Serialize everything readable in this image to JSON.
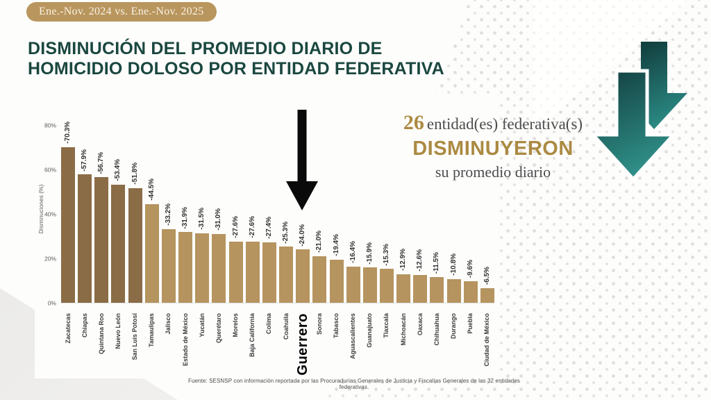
{
  "badge": {
    "label": "Ene.-Nov. 2024 vs. Ene.-Nov. 2025"
  },
  "title": {
    "line1": "DISMINUCIÓN DEL PROMEDIO DIARIO DE",
    "line2": "HOMICIDIO DOLOSO POR ENTIDAD FEDERATIVA"
  },
  "callout": {
    "count": "26",
    "label": "entidad(es) federativa(s)",
    "emphasis": "DISMINUYERON",
    "subtext": "su promedio diario"
  },
  "chart_data": {
    "type": "bar",
    "ylabel": "Disminuciones (%)",
    "ylim": [
      0,
      85
    ],
    "grid": false,
    "legend": "none",
    "y_tick_values": [
      0,
      20,
      40,
      60,
      80
    ],
    "y_tick_labels": [
      "0%",
      "20%",
      "40%",
      "60%",
      "80%"
    ],
    "categories": [
      "Zacatecas",
      "Chiapas",
      "Quintana Roo",
      "Nuevo León",
      "San Luis Potosí",
      "Tamaulipas",
      "Jalisco",
      "Estado de México",
      "Yucatán",
      "Querétaro",
      "Morelos",
      "Baja California",
      "Colima",
      "Coahuila",
      "Guerrero",
      "Sonora",
      "Tabasco",
      "Aguascalientes",
      "Guanajuato",
      "Tlaxcala",
      "Michoacán",
      "Oaxaca",
      "Chihuahua",
      "Durango",
      "Puebla",
      "Ciudad de México"
    ],
    "values": [
      -70.3,
      -57.9,
      -56.7,
      -53.4,
      -51.8,
      -44.5,
      -33.2,
      -31.9,
      -31.5,
      -31.0,
      -27.6,
      -27.6,
      -27.4,
      -25.3,
      -24.0,
      -21.0,
      -19.4,
      -16.4,
      -15.9,
      -15.3,
      -12.9,
      -12.6,
      -11.5,
      -10.8,
      -9.6,
      -6.5
    ],
    "dark_bar_count": 5,
    "bar_color_dark": "#8a6c46",
    "bar_color_light": "#b5945f",
    "highlight_category": "Guerrero",
    "annotation": {
      "symbol": "down-arrow",
      "target": "Guerrero"
    }
  },
  "footer": {
    "source": "Fuente: SESNSP con información reportada por las Procuradurías Generales de Justicia y Fiscalías Generales de las 32 entidades federativas."
  },
  "colors": {
    "badge_bg": "#b9965e",
    "title": "#1a473f",
    "gold": "#ab8a42",
    "teal_dark": "#123d3e",
    "teal_light": "#2f8f88"
  }
}
